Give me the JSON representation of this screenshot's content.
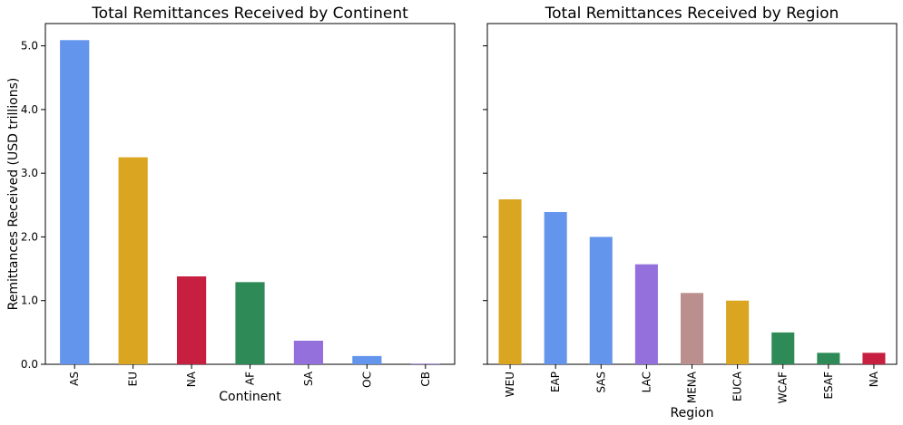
{
  "ylabel": "Remittances Received (USD trillions)",
  "ylim": [
    0,
    5.35
  ],
  "yticks": [
    "0.0",
    "1.0",
    "2.0",
    "3.0",
    "4.0",
    "5.0"
  ],
  "chart_data": [
    {
      "type": "bar",
      "title": "Total Remittances Received by Continent",
      "xlabel": "Continent",
      "ylabel": "Remittances Received (USD trillions)",
      "categories": [
        "AS",
        "EU",
        "NA",
        "AF",
        "SA",
        "OC",
        "CB"
      ],
      "values": [
        5.09,
        3.25,
        1.38,
        1.29,
        0.37,
        0.13,
        0.01
      ],
      "colors": [
        "#6495ed",
        "#daa520",
        "#c71f3f",
        "#2e8b57",
        "#9370db",
        "#6495ed",
        "#9370db"
      ],
      "ylim": [
        0,
        5.35
      ],
      "grid": false,
      "legend": "none"
    },
    {
      "type": "bar",
      "title": "Total Remittances Received by Region",
      "xlabel": "Region",
      "categories": [
        "WEU",
        "EAP",
        "SAS",
        "LAC",
        "MENA",
        "EUCA",
        "WCAF",
        "ESAF",
        "NA"
      ],
      "values": [
        2.59,
        2.39,
        2.0,
        1.57,
        1.12,
        1.0,
        0.5,
        0.18,
        0.18
      ],
      "colors": [
        "#daa520",
        "#6495ed",
        "#6495ed",
        "#9370db",
        "#bc8f8f",
        "#daa520",
        "#2e8b57",
        "#2e8b57",
        "#c71f3f"
      ],
      "ylim": [
        0,
        5.35
      ],
      "grid": false,
      "legend": "none"
    }
  ]
}
